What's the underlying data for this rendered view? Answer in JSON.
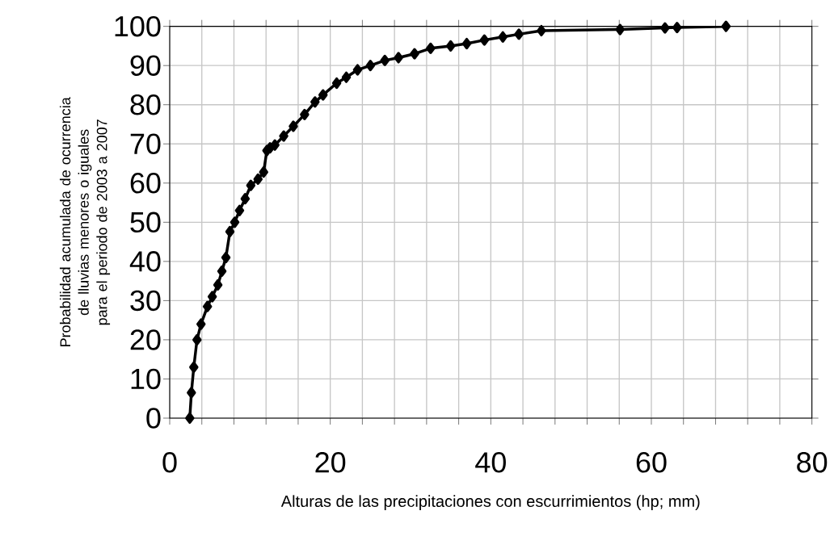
{
  "chart_data": {
    "type": "line",
    "xlabel": "Alturas de las precipitaciones con escurrimientos (hp; mm)",
    "ylabel": "Probabilidad acumulada de ocurrencia de lluvias menores o iguales para el periodo de 2003 a 2007",
    "series": [
      {
        "color": "#000000",
        "x": [
          2.5,
          2.7,
          3.0,
          3.4,
          3.9,
          4.7,
          5.3,
          6.0,
          6.5,
          7.0,
          7.5,
          8.1,
          8.7,
          9.4,
          10.1,
          11.0,
          11.7,
          12.1,
          12.5,
          13.1,
          14.2,
          15.4,
          16.8,
          18.1,
          19.1,
          20.8,
          22.0,
          23.4,
          25.0,
          26.8,
          28.5,
          30.5,
          32.5,
          35.0,
          37.0,
          39.2,
          41.5,
          43.5,
          46.3,
          56.1,
          61.7,
          63.2,
          69.3
        ],
        "values": [
          0,
          6.5,
          13,
          20,
          24,
          28.5,
          31,
          34,
          37.5,
          41,
          47.6,
          50,
          53,
          56,
          59.4,
          61,
          62.8,
          68.3,
          69,
          69.7,
          72,
          74.5,
          77.5,
          80.7,
          82.5,
          85.5,
          87,
          88.9,
          90,
          91.3,
          92,
          93,
          94.4,
          95,
          95.6,
          96.5,
          97.3,
          98,
          98.9,
          99.2,
          99.6,
          99.7,
          100
        ]
      }
    ],
    "xlim": [
      0,
      80
    ],
    "xticks": [
      0,
      {
        "value": 4,
        "label": null
      },
      {
        "value": 8,
        "label": null
      },
      {
        "value": 12,
        "label": null
      },
      {
        "value": 16,
        "label": null
      },
      20,
      {
        "value": 24,
        "label": null
      },
      {
        "value": 28,
        "label": null
      },
      {
        "value": 32,
        "label": null
      },
      {
        "value": 36,
        "label": null
      },
      40,
      {
        "value": 44,
        "label": null
      },
      {
        "value": 48,
        "label": null
      },
      {
        "value": 52,
        "label": null
      },
      {
        "value": 56,
        "label": null
      },
      60,
      {
        "value": 64,
        "label": null
      },
      {
        "value": 68,
        "label": null
      },
      {
        "value": 72,
        "label": null
      },
      {
        "value": 76,
        "label": null
      },
      80
    ],
    "ylim": [
      0,
      100
    ],
    "yticks": [
      0,
      10,
      20,
      30,
      40,
      50,
      60,
      70,
      80,
      90,
      100
    ],
    "grid": true,
    "marker": "diamond",
    "line_style": "solid"
  }
}
